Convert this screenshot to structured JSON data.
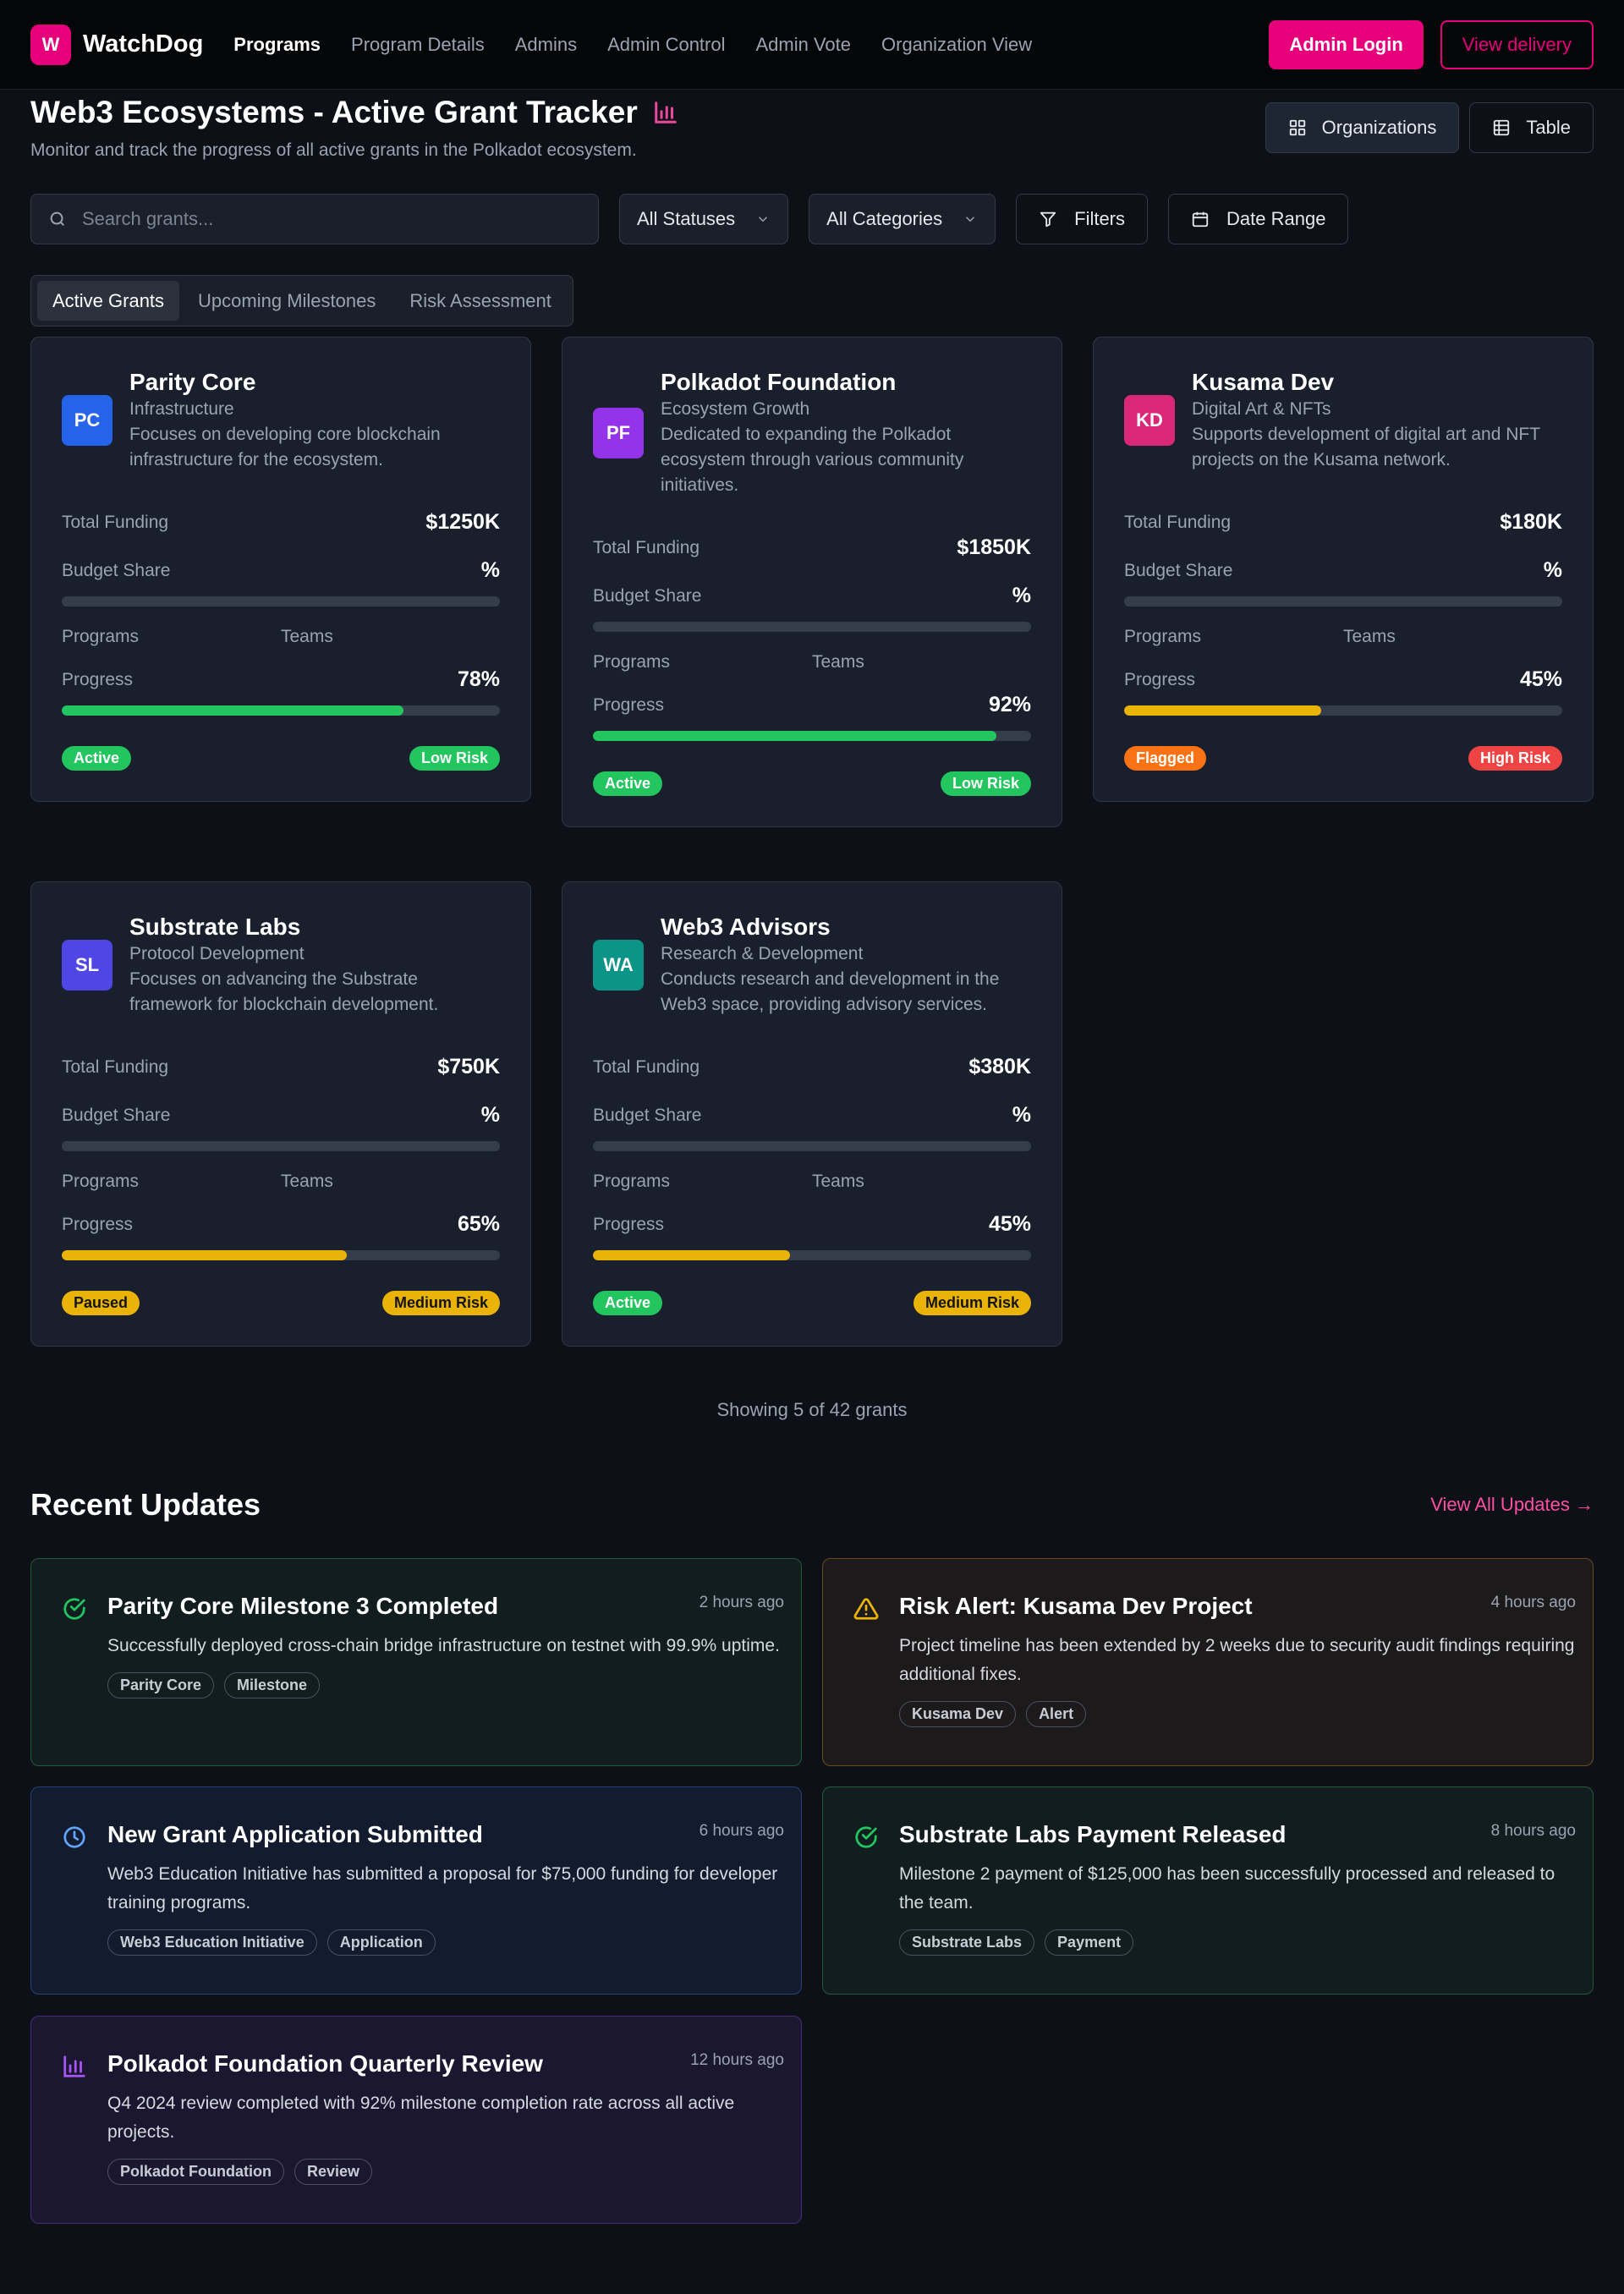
{
  "nav": {
    "logo_letter": "W",
    "brand": "WatchDog",
    "links": [
      "Programs",
      "Program Details",
      "Admins",
      "Admin Control",
      "Admin Vote",
      "Organization View"
    ],
    "admin_login": "Admin Login",
    "view_delivery": "View delivery"
  },
  "header": {
    "title": "Web3 Ecosystems - Active Grant Tracker",
    "subtitle": "Monitor and track the progress of all active grants in the Polkadot ecosystem.",
    "view_organizations": "Organizations",
    "view_table": "Table"
  },
  "filters": {
    "search_placeholder": "Search grants...",
    "status": "All Statuses",
    "category": "All Categories",
    "filters": "Filters",
    "date_range": "Date Range"
  },
  "tabs": [
    "Active Grants",
    "Upcoming Milestones",
    "Risk Assessment"
  ],
  "labels": {
    "total_funding": "Total Funding",
    "budget_share": "Budget Share",
    "programs": "Programs",
    "teams": "Teams",
    "progress": "Progress"
  },
  "grants": [
    {
      "initials": "PC",
      "color": "#2563eb",
      "name": "Parity Core",
      "category": "Infrastructure",
      "description": "Focuses on developing core blockchain infrastructure for the ecosystem.",
      "funding": "$1250K",
      "budget_share": "%",
      "progress": 78,
      "progress_label": "78%",
      "progress_color": "#22c55e",
      "status": "Active",
      "status_color": "#22c55e",
      "risk": "Low Risk",
      "risk_color": "#22c55e"
    },
    {
      "initials": "PF",
      "color": "#9333ea",
      "name": "Polkadot Foundation",
      "category": "Ecosystem Growth",
      "description": "Dedicated to expanding the Polkadot ecosystem through various community initiatives.",
      "funding": "$1850K",
      "budget_share": "%",
      "progress": 92,
      "progress_label": "92%",
      "progress_color": "#22c55e",
      "status": "Active",
      "status_color": "#22c55e",
      "risk": "Low Risk",
      "risk_color": "#22c55e"
    },
    {
      "initials": "KD",
      "color": "#db2777",
      "name": "Kusama Dev",
      "category": "Digital Art & NFTs",
      "description": "Supports development of digital art and NFT projects on the Kusama network.",
      "funding": "$180K",
      "budget_share": "%",
      "progress": 45,
      "progress_label": "45%",
      "progress_color": "#eab308",
      "status": "Flagged",
      "status_color": "#f97316",
      "risk": "High Risk",
      "risk_color": "#ef4444"
    },
    {
      "initials": "SL",
      "color": "#4f46e5",
      "name": "Substrate Labs",
      "category": "Protocol Development",
      "description": "Focuses on advancing the Substrate framework for blockchain development.",
      "funding": "$750K",
      "budget_share": "%",
      "progress": 65,
      "progress_label": "65%",
      "progress_color": "#eab308",
      "status": "Paused",
      "status_color": "#eab308",
      "risk": "Medium Risk",
      "risk_color": "#eab308"
    },
    {
      "initials": "WA",
      "color": "#0d9488",
      "name": "Web3 Advisors",
      "category": "Research & Development",
      "description": "Conducts research and development in the Web3 space, providing advisory services.",
      "funding": "$380K",
      "budget_share": "%",
      "progress": 45,
      "progress_label": "45%",
      "progress_color": "#eab308",
      "status": "Active",
      "status_color": "#22c55e",
      "risk": "Medium Risk",
      "risk_color": "#eab308"
    }
  ],
  "showing": "Showing 5 of 42 grants",
  "updates_section": {
    "title": "Recent Updates",
    "view_all": "View All Updates →"
  },
  "updates": [
    {
      "icon": "check-circle-icon",
      "accent": "#22c55e",
      "bg": "#111d1f",
      "border": "#1f5d3a",
      "title": "Parity Core Milestone 3 Completed",
      "time": "2 hours ago",
      "text": "Successfully deployed cross-chain bridge infrastructure on testnet with 99.9% uptime.",
      "tags": [
        "Parity Core",
        "Milestone"
      ]
    },
    {
      "icon": "warning-icon",
      "accent": "#eab308",
      "bg": "#1d1a1b",
      "border": "#6b4a1f",
      "title": "Risk Alert: Kusama Dev Project",
      "time": "4 hours ago",
      "text": "Project timeline has been extended by 2 weeks due to security audit findings requiring additional fixes.",
      "tags": [
        "Kusama Dev",
        "Alert"
      ]
    },
    {
      "icon": "clock-icon",
      "accent": "#60a5fa",
      "bg": "#131b2e",
      "border": "#24407a",
      "title": "New Grant Application Submitted",
      "time": "6 hours ago",
      "text": "Web3 Education Initiative has submitted a proposal for $75,000 funding for developer training programs.",
      "tags": [
        "Web3 Education Initiative",
        "Application"
      ]
    },
    {
      "icon": "check-circle-icon",
      "accent": "#22c55e",
      "bg": "#111d1f",
      "border": "#1f5d3a",
      "title": "Substrate Labs Payment Released",
      "time": "8 hours ago",
      "text": "Milestone 2 payment of $125,000 has been successfully processed and released to the team.",
      "tags": [
        "Substrate Labs",
        "Payment"
      ]
    },
    {
      "icon": "chart-icon",
      "accent": "#a855f7",
      "bg": "#1b1730",
      "border": "#4c2a7a",
      "title": "Polkadot Foundation Quarterly Review",
      "time": "12 hours ago",
      "text": "Q4 2024 review completed with 92% milestone completion rate across all active projects.",
      "tags": [
        "Polkadot Foundation",
        "Review"
      ]
    }
  ]
}
